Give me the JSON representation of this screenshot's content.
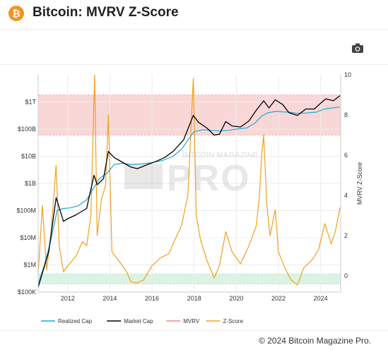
{
  "header": {
    "title": "Bitcoin: MVRV Z-Score",
    "logo_symbol": "₿",
    "logo_color": "#f7931a"
  },
  "toolbar": {
    "camera_icon": "camera-icon"
  },
  "footer": {
    "copyright": "© 2024 Bitcoin Magazine Pro."
  },
  "watermark": {
    "top": "BITCOIN MAGAZINE",
    "main": "PRO"
  },
  "chart_data": {
    "type": "line",
    "title": "",
    "xlabel": "",
    "ylabel_left": "",
    "ylabel_right": "MVRV Z-Score",
    "x_ticks": [
      "2012",
      "2014",
      "2016",
      "2018",
      "2020",
      "2022",
      "2024"
    ],
    "xlim": [
      2010.6,
      2024.95
    ],
    "left_axis": {
      "scale": "log",
      "ylim": [
        100000,
        10000000000000
      ],
      "ticks": [
        {
          "value": 100000,
          "label": "$100K"
        },
        {
          "value": 1000000,
          "label": "$1M"
        },
        {
          "value": 10000000,
          "label": "$10M"
        },
        {
          "value": 100000000,
          "label": "$100M"
        },
        {
          "value": 1000000000,
          "label": "$1B"
        },
        {
          "value": 10000000000,
          "label": "$10B"
        },
        {
          "value": 100000000000,
          "label": "$100B"
        },
        {
          "value": 1000000000000,
          "label": "$1T"
        }
      ]
    },
    "right_axis": {
      "scale": "linear",
      "ylim": [
        -0.8,
        10
      ],
      "ticks": [
        {
          "value": 0,
          "label": "0"
        },
        {
          "value": 2,
          "label": "2"
        },
        {
          "value": 4,
          "label": "4"
        },
        {
          "value": 6,
          "label": "6"
        },
        {
          "value": 8,
          "label": "8"
        },
        {
          "value": 10,
          "label": "10"
        }
      ]
    },
    "bands": [
      {
        "zone": "overvalued",
        "from": 7,
        "to": 9,
        "color": "#f4b6b6"
      },
      {
        "zone": "undervalued",
        "from": -0.4,
        "to": 0.1,
        "color": "#bfe8cf"
      }
    ],
    "legend_position": "bottom-left",
    "series": [
      {
        "name": "Realized Cap",
        "axis": "left",
        "color": "#1ea7d8",
        "x": [
          2010.6,
          2010.9,
          2011.2,
          2011.5,
          2011.8,
          2012.1,
          2012.5,
          2012.9,
          2013.2,
          2013.5,
          2013.9,
          2014.2,
          2014.6,
          2015.0,
          2015.5,
          2016.0,
          2016.5,
          2017.0,
          2017.4,
          2017.8,
          2018.0,
          2018.4,
          2018.9,
          2019.2,
          2019.6,
          2020.0,
          2020.5,
          2020.9,
          2021.2,
          2021.5,
          2021.9,
          2022.2,
          2022.5,
          2022.9,
          2023.3,
          2023.8,
          2024.2,
          2024.9
        ],
        "values": [
          200000,
          1000000,
          8000000,
          100000000,
          120000000,
          125000000,
          150000000,
          250000000,
          600000000,
          1500000000,
          2500000000,
          5000000000,
          5500000000,
          5000000000,
          5200000000,
          5800000000,
          7000000000,
          10000000000,
          18000000000,
          50000000000,
          80000000000,
          95000000000,
          90000000000,
          85000000000,
          90000000000,
          100000000000,
          110000000000,
          170000000000,
          300000000000,
          400000000000,
          450000000000,
          430000000000,
          420000000000,
          380000000000,
          390000000000,
          420000000000,
          550000000000,
          650000000000
        ]
      },
      {
        "name": "Market Cap",
        "axis": "left",
        "color": "#000000",
        "x": [
          2010.6,
          2010.8,
          2011.1,
          2011.45,
          2011.8,
          2012.0,
          2012.4,
          2012.9,
          2013.25,
          2013.4,
          2013.7,
          2013.93,
          2014.2,
          2014.6,
          2015.0,
          2015.3,
          2015.8,
          2016.2,
          2016.6,
          2017.0,
          2017.5,
          2017.96,
          2018.2,
          2018.6,
          2018.95,
          2019.2,
          2019.5,
          2019.8,
          2020.2,
          2020.6,
          2020.95,
          2021.3,
          2021.55,
          2021.85,
          2022.2,
          2022.5,
          2022.9,
          2023.3,
          2023.7,
          2024.0,
          2024.25,
          2024.6,
          2024.92
        ],
        "values": [
          150000,
          500000,
          3000000,
          300000000,
          40000000,
          50000000,
          70000000,
          120000000,
          2000000000,
          900000000,
          1500000000,
          15000000000,
          9000000000,
          6000000000,
          4000000000,
          3500000000,
          5000000000,
          6500000000,
          9000000000,
          15000000000,
          40000000000,
          320000000000,
          180000000000,
          110000000000,
          60000000000,
          65000000000,
          190000000000,
          130000000000,
          120000000000,
          200000000000,
          500000000000,
          1100000000000,
          600000000000,
          1200000000000,
          800000000000,
          400000000000,
          320000000000,
          550000000000,
          550000000000,
          900000000000,
          1300000000000,
          1100000000000,
          1700000000000
        ]
      },
      {
        "name": "MVRV",
        "axis": "right",
        "color": "#f08a8a",
        "x": [],
        "values": []
      },
      {
        "name": "Z-Score",
        "axis": "right",
        "color": "#f0a020",
        "x": [
          2010.6,
          2010.8,
          2011.0,
          2011.2,
          2011.45,
          2011.6,
          2011.8,
          2012.0,
          2012.4,
          2012.7,
          2012.9,
          2013.1,
          2013.28,
          2013.4,
          2013.6,
          2013.8,
          2013.93,
          2014.1,
          2014.4,
          2014.8,
          2015.0,
          2015.3,
          2015.6,
          2016.0,
          2016.4,
          2016.8,
          2017.0,
          2017.4,
          2017.7,
          2017.96,
          2018.1,
          2018.3,
          2018.6,
          2018.95,
          2019.2,
          2019.5,
          2019.8,
          2020.2,
          2020.6,
          2020.95,
          2021.1,
          2021.2,
          2021.3,
          2021.45,
          2021.6,
          2021.85,
          2022.0,
          2022.3,
          2022.6,
          2022.9,
          2023.2,
          2023.6,
          2023.9,
          2024.2,
          2024.5,
          2024.7,
          2024.92
        ],
        "values": [
          0.1,
          3.5,
          0.3,
          2.0,
          5.5,
          1.5,
          0.2,
          0.5,
          1.0,
          1.7,
          1.5,
          3.0,
          10.0,
          2.0,
          3.8,
          4.5,
          8.0,
          1.2,
          0.8,
          0.2,
          -0.3,
          -0.35,
          -0.2,
          0.5,
          0.9,
          1.1,
          1.6,
          2.5,
          4.0,
          9.8,
          3.0,
          1.8,
          0.8,
          -0.1,
          0.5,
          2.2,
          1.2,
          0.6,
          1.5,
          2.5,
          4.0,
          6.0,
          7.0,
          3.5,
          2.0,
          3.3,
          1.2,
          0.4,
          -0.2,
          -0.45,
          0.4,
          0.8,
          1.3,
          2.6,
          1.6,
          2.2,
          3.4
        ]
      }
    ]
  }
}
